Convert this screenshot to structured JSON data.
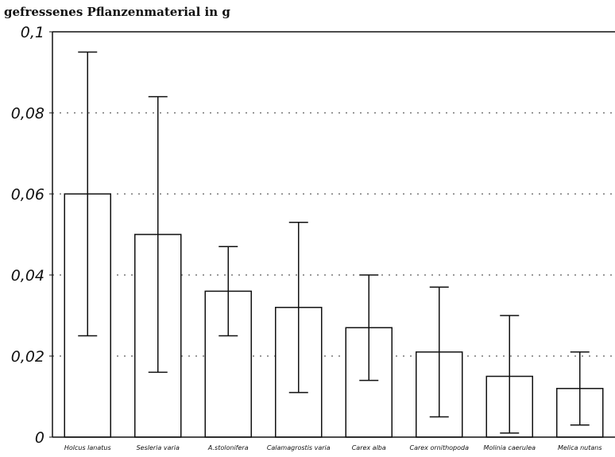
{
  "chart_data": {
    "type": "bar",
    "title": "",
    "ylabel": "gefressenes Pflanzenmaterial in g",
    "xlabel": "",
    "ylim": [
      0,
      0.1
    ],
    "yticks": [
      {
        "value": 0,
        "label": "0"
      },
      {
        "value": 0.02,
        "label": "0,02"
      },
      {
        "value": 0.04,
        "label": "0,04"
      },
      {
        "value": 0.06,
        "label": "0,06"
      },
      {
        "value": 0.08,
        "label": "0,08"
      },
      {
        "value": 0.1,
        "label": "0,1"
      }
    ],
    "grid": true,
    "categories": [
      "Holcus lanatus",
      "Sesleria varia",
      "A.stolonifera",
      "Calamagrostis varia",
      "Carex alba",
      "Carex ornithopoda",
      "Molinia caerulea",
      "Melica nutans"
    ],
    "values": [
      0.06,
      0.05,
      0.036,
      0.032,
      0.027,
      0.021,
      0.015,
      0.012
    ],
    "error_low": [
      0.025,
      0.016,
      0.025,
      0.011,
      0.014,
      0.005,
      0.001,
      0.003
    ],
    "error_high": [
      0.095,
      0.084,
      0.047,
      0.053,
      0.04,
      0.037,
      0.03,
      0.021
    ]
  },
  "colors": {
    "bar_fill": "#ffffff",
    "stroke": "#111111",
    "grid": "#333333"
  }
}
